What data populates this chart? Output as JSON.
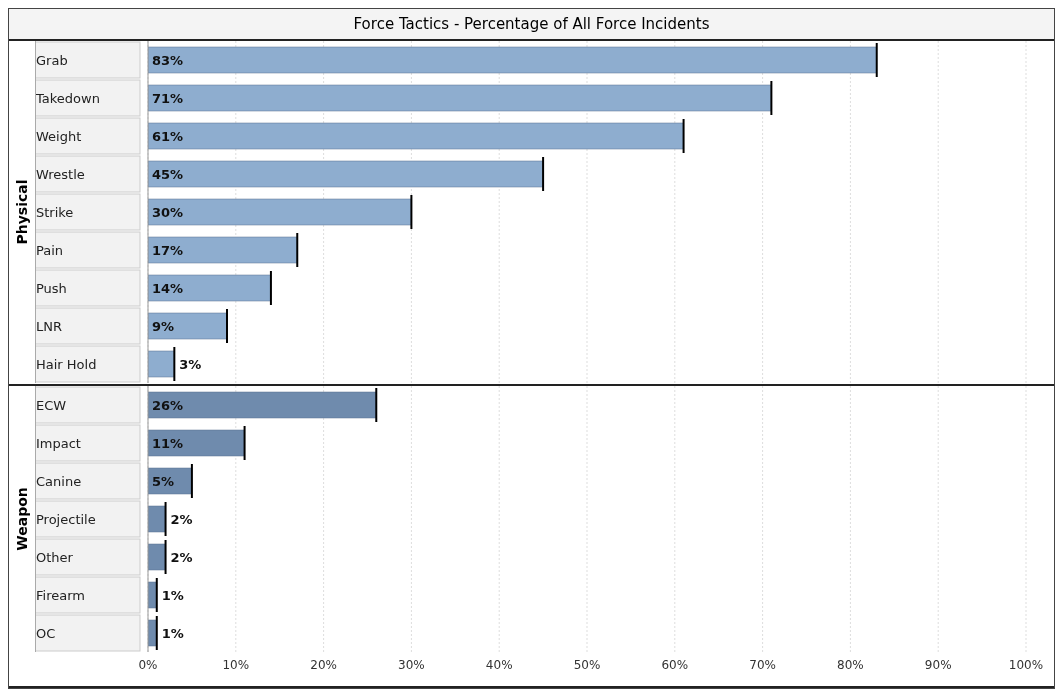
{
  "chart_data": [
    {
      "type": "bar",
      "orientation": "horizontal",
      "title": "Force Tactics - Percentage of All Force Incidents",
      "ylabel": "Physical",
      "categories": [
        "Grab",
        "Takedown",
        "Weight",
        "Wrestle",
        "Strike",
        "Pain",
        "Push",
        "LNR",
        "Hair Hold"
      ],
      "values": [
        83,
        71,
        61,
        45,
        30,
        17,
        14,
        9,
        3
      ],
      "value_labels": [
        "83%",
        "71%",
        "61%",
        "45%",
        "30%",
        "17%",
        "14%",
        "9%",
        "3%"
      ],
      "color": "#8eadcf",
      "xlim": [
        0,
        100
      ],
      "xticks": [
        {
          "value": 0,
          "label": null
        },
        {
          "value": 10,
          "label": null
        },
        {
          "value": 20,
          "label": null
        },
        {
          "value": 30,
          "label": null
        },
        {
          "value": 40,
          "label": null
        },
        {
          "value": 50,
          "label": null
        },
        {
          "value": 60,
          "label": null
        },
        {
          "value": 70,
          "label": null
        },
        {
          "value": 80,
          "label": null
        },
        {
          "value": 90,
          "label": null
        },
        {
          "value": 100,
          "label": null
        }
      ],
      "grid": "x",
      "tick_labels": "y"
    },
    {
      "type": "bar",
      "orientation": "horizontal",
      "ylabel": "Weapon",
      "categories": [
        "ECW",
        "Impact",
        "Canine",
        "Projectile",
        "Other",
        "Firearm",
        "OC"
      ],
      "values": [
        26,
        11,
        5,
        2,
        2,
        1,
        1
      ],
      "value_labels": [
        "26%",
        "11%",
        "5%",
        "2%",
        "2%",
        "1%",
        "1%"
      ],
      "color": "#6f8bad",
      "xlim": [
        0,
        100
      ],
      "xticks": [
        {
          "value": 0,
          "label": "0%"
        },
        {
          "value": 10,
          "label": "10%"
        },
        {
          "value": 20,
          "label": "20%"
        },
        {
          "value": 30,
          "label": "30%"
        },
        {
          "value": 40,
          "label": "40%"
        },
        {
          "value": 50,
          "label": "50%"
        },
        {
          "value": 60,
          "label": "60%"
        },
        {
          "value": 70,
          "label": "70%"
        },
        {
          "value": 80,
          "label": "80%"
        },
        {
          "value": 90,
          "label": "90%"
        },
        {
          "value": 100,
          "label": "100%"
        }
      ],
      "grid": "x"
    }
  ]
}
